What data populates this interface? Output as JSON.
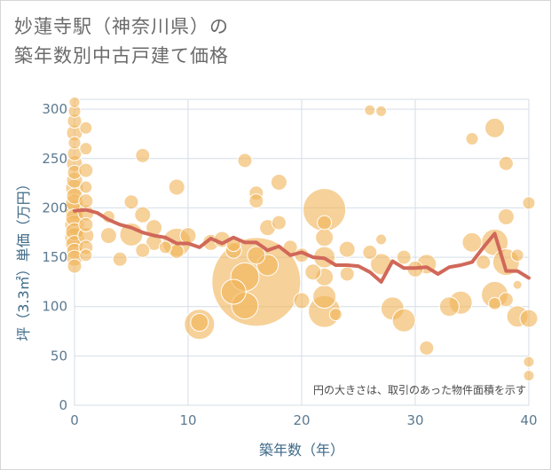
{
  "title_line1": "妙蓮寺駅（神奈川県）の",
  "title_line2": "築年数別中古戸建て価格",
  "note": "円の大きさは、取引のあった物件面積を示す",
  "colors": {
    "bubble": "#f0b45a",
    "line": "#d0685a",
    "grid": "#d4dee6",
    "tick": "#5c7a90"
  },
  "chart_data": {
    "type": "scatter",
    "xlabel": "築年数（年）",
    "ylabel": "坪（3.3㎡）単価（万円）",
    "xlim": [
      0,
      40
    ],
    "ylim": [
      0,
      310
    ],
    "xticks": [
      0,
      10,
      20,
      30,
      40
    ],
    "yticks": [
      0,
      50,
      100,
      150,
      200,
      250,
      300
    ],
    "grid": true,
    "bubbles": [
      {
        "x": 0,
        "y": 307,
        "s": 6
      },
      {
        "x": 0,
        "y": 298,
        "s": 7
      },
      {
        "x": 0,
        "y": 288,
        "s": 8
      },
      {
        "x": 0,
        "y": 276,
        "s": 9
      },
      {
        "x": 0,
        "y": 266,
        "s": 7
      },
      {
        "x": 0,
        "y": 255,
        "s": 8
      },
      {
        "x": 0,
        "y": 245,
        "s": 9
      },
      {
        "x": 0,
        "y": 236,
        "s": 8
      },
      {
        "x": 0,
        "y": 228,
        "s": 9
      },
      {
        "x": 0,
        "y": 220,
        "s": 10
      },
      {
        "x": 0,
        "y": 212,
        "s": 9
      },
      {
        "x": 0,
        "y": 205,
        "s": 10
      },
      {
        "x": 0,
        "y": 198,
        "s": 11
      },
      {
        "x": 0,
        "y": 190,
        "s": 10
      },
      {
        "x": 0,
        "y": 183,
        "s": 11
      },
      {
        "x": 0,
        "y": 176,
        "s": 10
      },
      {
        "x": 0,
        "y": 170,
        "s": 11
      },
      {
        "x": 0,
        "y": 163,
        "s": 10
      },
      {
        "x": 0,
        "y": 156,
        "s": 9
      },
      {
        "x": 0,
        "y": 149,
        "s": 9
      },
      {
        "x": 0,
        "y": 141,
        "s": 8
      },
      {
        "x": 1,
        "y": 281,
        "s": 7
      },
      {
        "x": 1,
        "y": 260,
        "s": 7
      },
      {
        "x": 1,
        "y": 238,
        "s": 8
      },
      {
        "x": 1,
        "y": 221,
        "s": 7
      },
      {
        "x": 1,
        "y": 207,
        "s": 8
      },
      {
        "x": 1,
        "y": 195,
        "s": 9
      },
      {
        "x": 1,
        "y": 183,
        "s": 8
      },
      {
        "x": 1,
        "y": 172,
        "s": 9
      },
      {
        "x": 1,
        "y": 160,
        "s": 8
      },
      {
        "x": 1,
        "y": 152,
        "s": 7
      },
      {
        "x": 3,
        "y": 191,
        "s": 7
      },
      {
        "x": 3,
        "y": 172,
        "s": 9
      },
      {
        "x": 4,
        "y": 148,
        "s": 8
      },
      {
        "x": 5,
        "y": 206,
        "s": 8
      },
      {
        "x": 5,
        "y": 173,
        "s": 13
      },
      {
        "x": 6,
        "y": 253,
        "s": 8
      },
      {
        "x": 6,
        "y": 193,
        "s": 9
      },
      {
        "x": 6,
        "y": 157,
        "s": 8
      },
      {
        "x": 7,
        "y": 180,
        "s": 9
      },
      {
        "x": 7,
        "y": 165,
        "s": 9
      },
      {
        "x": 8,
        "y": 160,
        "s": 7
      },
      {
        "x": 9,
        "y": 221,
        "s": 9
      },
      {
        "x": 9,
        "y": 165,
        "s": 16
      },
      {
        "x": 9,
        "y": 156,
        "s": 8
      },
      {
        "x": 10,
        "y": 172,
        "s": 9
      },
      {
        "x": 11,
        "y": 82,
        "s": 17
      },
      {
        "x": 11,
        "y": 84,
        "s": 10
      },
      {
        "x": 12,
        "y": 165,
        "s": 9
      },
      {
        "x": 13,
        "y": 168,
        "s": 9
      },
      {
        "x": 14,
        "y": 163,
        "s": 8
      },
      {
        "x": 14,
        "y": 157,
        "s": 9
      },
      {
        "x": 14,
        "y": 115,
        "s": 14
      },
      {
        "x": 15,
        "y": 248,
        "s": 8
      },
      {
        "x": 15,
        "y": 130,
        "s": 16
      },
      {
        "x": 15,
        "y": 101,
        "s": 15
      },
      {
        "x": 16,
        "y": 215,
        "s": 8
      },
      {
        "x": 16,
        "y": 207,
        "s": 8
      },
      {
        "x": 16,
        "y": 125,
        "s": 50
      },
      {
        "x": 16,
        "y": 152,
        "s": 10
      },
      {
        "x": 17,
        "y": 180,
        "s": 9
      },
      {
        "x": 17,
        "y": 142,
        "s": 12
      },
      {
        "x": 18,
        "y": 226,
        "s": 9
      },
      {
        "x": 18,
        "y": 185,
        "s": 8
      },
      {
        "x": 19,
        "y": 160,
        "s": 8
      },
      {
        "x": 20,
        "y": 106,
        "s": 9
      },
      {
        "x": 20,
        "y": 152,
        "s": 8
      },
      {
        "x": 21,
        "y": 135,
        "s": 9
      },
      {
        "x": 22,
        "y": 198,
        "s": 24
      },
      {
        "x": 22,
        "y": 185,
        "s": 8
      },
      {
        "x": 22,
        "y": 170,
        "s": 10
      },
      {
        "x": 22,
        "y": 150,
        "s": 12
      },
      {
        "x": 22,
        "y": 130,
        "s": 10
      },
      {
        "x": 22,
        "y": 110,
        "s": 13
      },
      {
        "x": 22,
        "y": 95,
        "s": 18
      },
      {
        "x": 23,
        "y": 92,
        "s": 7
      },
      {
        "x": 24,
        "y": 158,
        "s": 9
      },
      {
        "x": 24,
        "y": 133,
        "s": 8
      },
      {
        "x": 26,
        "y": 299,
        "s": 6
      },
      {
        "x": 26,
        "y": 155,
        "s": 8
      },
      {
        "x": 27,
        "y": 298,
        "s": 6
      },
      {
        "x": 27,
        "y": 168,
        "s": 6
      },
      {
        "x": 27,
        "y": 143,
        "s": 12
      },
      {
        "x": 28,
        "y": 98,
        "s": 13
      },
      {
        "x": 29,
        "y": 150,
        "s": 8
      },
      {
        "x": 29,
        "y": 86,
        "s": 13
      },
      {
        "x": 30,
        "y": 138,
        "s": 9
      },
      {
        "x": 31,
        "y": 143,
        "s": 11
      },
      {
        "x": 31,
        "y": 58,
        "s": 8
      },
      {
        "x": 33,
        "y": 100,
        "s": 11
      },
      {
        "x": 34,
        "y": 104,
        "s": 13
      },
      {
        "x": 35,
        "y": 270,
        "s": 7
      },
      {
        "x": 35,
        "y": 165,
        "s": 11
      },
      {
        "x": 36,
        "y": 145,
        "s": 8
      },
      {
        "x": 37,
        "y": 281,
        "s": 11
      },
      {
        "x": 37,
        "y": 165,
        "s": 15
      },
      {
        "x": 37,
        "y": 112,
        "s": 15
      },
      {
        "x": 37,
        "y": 103,
        "s": 7
      },
      {
        "x": 38,
        "y": 245,
        "s": 8
      },
      {
        "x": 38,
        "y": 191,
        "s": 9
      },
      {
        "x": 38,
        "y": 145,
        "s": 15
      },
      {
        "x": 38,
        "y": 107,
        "s": 8
      },
      {
        "x": 39,
        "y": 152,
        "s": 7
      },
      {
        "x": 39,
        "y": 122,
        "s": 5
      },
      {
        "x": 39,
        "y": 90,
        "s": 12
      },
      {
        "x": 40,
        "y": 205,
        "s": 7
      },
      {
        "x": 40,
        "y": 88,
        "s": 10
      },
      {
        "x": 40,
        "y": 44,
        "s": 6
      },
      {
        "x": 40,
        "y": 30,
        "s": 6
      }
    ],
    "line": {
      "x": [
        0,
        1,
        2,
        3,
        4,
        5,
        6,
        7,
        8,
        9,
        10,
        11,
        12,
        13,
        14,
        15,
        16,
        17,
        18,
        19,
        20,
        21,
        22,
        23,
        24,
        25,
        26,
        27,
        28,
        29,
        30,
        31,
        32,
        33,
        34,
        35,
        36,
        37,
        38,
        39,
        40
      ],
      "y": [
        197,
        198,
        195,
        188,
        183,
        180,
        175,
        172,
        170,
        164,
        164,
        160,
        169,
        164,
        170,
        165,
        165,
        157,
        161,
        152,
        155,
        150,
        149,
        142,
        142,
        141,
        135,
        125,
        146,
        139,
        139,
        140,
        133,
        140,
        142,
        145,
        160,
        174,
        136,
        136,
        129
      ]
    }
  }
}
